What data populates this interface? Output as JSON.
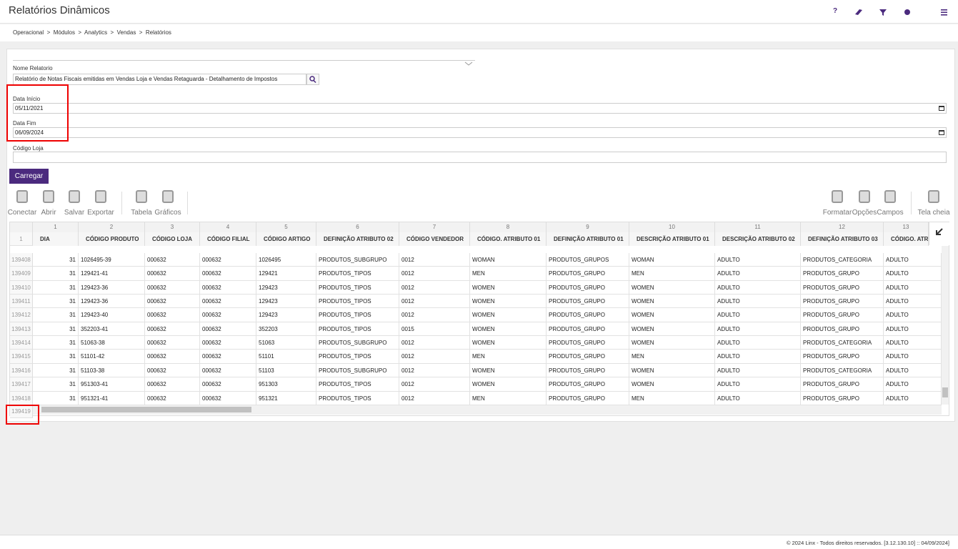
{
  "header": {
    "title": "Relatórios Dinâmicos",
    "help": "?"
  },
  "breadcrumb": "Operacional  >  Módulos  >  Analytics  >  Vendas  >  Relatórios",
  "form": {
    "report_label": "Nome Relatorio",
    "report_value": "Relatório de Notas Fiscais emitidas em Vendas Loja e Vendas Retaguarda - Detalhamento de Impostos",
    "start_label": "Data Início",
    "start_value": "05/11/2021",
    "end_label": "Data Fim",
    "end_value": "06/09/2024",
    "store_label": "Código Loja"
  },
  "load_button": "Carregar",
  "toolbar": {
    "left": [
      "Conectar",
      "Abrir",
      "Salvar",
      "Exportar",
      "Tabela",
      "Gráficos"
    ],
    "right": [
      "Formatar",
      "Opções",
      "Campos",
      "Tela cheia"
    ]
  },
  "grid": {
    "column_numbers": [
      "1",
      "2",
      "3",
      "4",
      "5",
      "6",
      "7",
      "8",
      "9",
      "10",
      "11",
      "12",
      "13"
    ],
    "header_row_number": "1",
    "headers": [
      "DIA",
      "CÓDIGO PRODUTO",
      "CÓDIGO LOJA",
      "CÓDIGO FILIAL",
      "CÓDIGO ARTIGO",
      "DEFINIÇÃO ATRIBUTO 02",
      "CÓDIGO VENDEDOR",
      "CÓDIGO. ATRIBUTO 01",
      "DEFINIÇÃO ATRIBUTO 01",
      "DESCRIÇÃO ATRIBUTO 01",
      "DESCRIÇÃO ATRIBUTO 02",
      "DEFINIÇÃO ATRIBUTO 03",
      "CÓDIGO. ATRI"
    ],
    "rows": [
      {
        "number": "139408",
        "cells": [
          "31",
          "1026495-39",
          "000632",
          "000632",
          "1026495",
          "PRODUTOS_SUBGRUPO",
          "0012",
          "WOMAN",
          "PRODUTOS_GRUPOS",
          "WOMAN",
          "ADULTO",
          "PRODUTOS_CATEGORIA",
          "ADULTO"
        ]
      },
      {
        "number": "139409",
        "cells": [
          "31",
          "129421-41",
          "000632",
          "000632",
          "129421",
          "PRODUTOS_TIPOS",
          "0012",
          "MEN",
          "PRODUTOS_GRUPO",
          "MEN",
          "ADULTO",
          "PRODUTOS_GRUPO",
          "ADULTO"
        ]
      },
      {
        "number": "139410",
        "cells": [
          "31",
          "129423-36",
          "000632",
          "000632",
          "129423",
          "PRODUTOS_TIPOS",
          "0012",
          "WOMEN",
          "PRODUTOS_GRUPO",
          "WOMEN",
          "ADULTO",
          "PRODUTOS_GRUPO",
          "ADULTO"
        ]
      },
      {
        "number": "139411",
        "cells": [
          "31",
          "129423-36",
          "000632",
          "000632",
          "129423",
          "PRODUTOS_TIPOS",
          "0012",
          "WOMEN",
          "PRODUTOS_GRUPO",
          "WOMEN",
          "ADULTO",
          "PRODUTOS_GRUPO",
          "ADULTO"
        ]
      },
      {
        "number": "139412",
        "cells": [
          "31",
          "129423-40",
          "000632",
          "000632",
          "129423",
          "PRODUTOS_TIPOS",
          "0012",
          "WOMEN",
          "PRODUTOS_GRUPO",
          "WOMEN",
          "ADULTO",
          "PRODUTOS_GRUPO",
          "ADULTO"
        ]
      },
      {
        "number": "139413",
        "cells": [
          "31",
          "352203-41",
          "000632",
          "000632",
          "352203",
          "PRODUTOS_TIPOS",
          "0015",
          "WOMEN",
          "PRODUTOS_GRUPO",
          "WOMEN",
          "ADULTO",
          "PRODUTOS_GRUPO",
          "ADULTO"
        ]
      },
      {
        "number": "139414",
        "cells": [
          "31",
          "51063-38",
          "000632",
          "000632",
          "51063",
          "PRODUTOS_SUBGRUPO",
          "0012",
          "WOMEN",
          "PRODUTOS_GRUPO",
          "WOMEN",
          "ADULTO",
          "PRODUTOS_CATEGORIA",
          "ADULTO"
        ]
      },
      {
        "number": "139415",
        "cells": [
          "31",
          "51101-42",
          "000632",
          "000632",
          "51101",
          "PRODUTOS_TIPOS",
          "0012",
          "MEN",
          "PRODUTOS_GRUPO",
          "MEN",
          "ADULTO",
          "PRODUTOS_GRUPO",
          "ADULTO"
        ]
      },
      {
        "number": "139416",
        "cells": [
          "31",
          "51103-38",
          "000632",
          "000632",
          "51103",
          "PRODUTOS_SUBGRUPO",
          "0012",
          "WOMEN",
          "PRODUTOS_GRUPO",
          "WOMEN",
          "ADULTO",
          "PRODUTOS_CATEGORIA",
          "ADULTO"
        ]
      },
      {
        "number": "139417",
        "cells": [
          "31",
          "951303-41",
          "000632",
          "000632",
          "951303",
          "PRODUTOS_TIPOS",
          "0012",
          "WOMEN",
          "PRODUTOS_GRUPO",
          "WOMEN",
          "ADULTO",
          "PRODUTOS_GRUPO",
          "ADULTO"
        ]
      },
      {
        "number": "139418",
        "cells": [
          "31",
          "951321-41",
          "000632",
          "000632",
          "951321",
          "PRODUTOS_TIPOS",
          "0012",
          "MEN",
          "PRODUTOS_GRUPO",
          "MEN",
          "ADULTO",
          "PRODUTOS_GRUPO",
          "ADULTO"
        ]
      }
    ],
    "last_row_number": "139419"
  },
  "footer": "© 2024 Linx - Todos direitos reservados. [3.12.130.10] :: 04/09/2024]"
}
